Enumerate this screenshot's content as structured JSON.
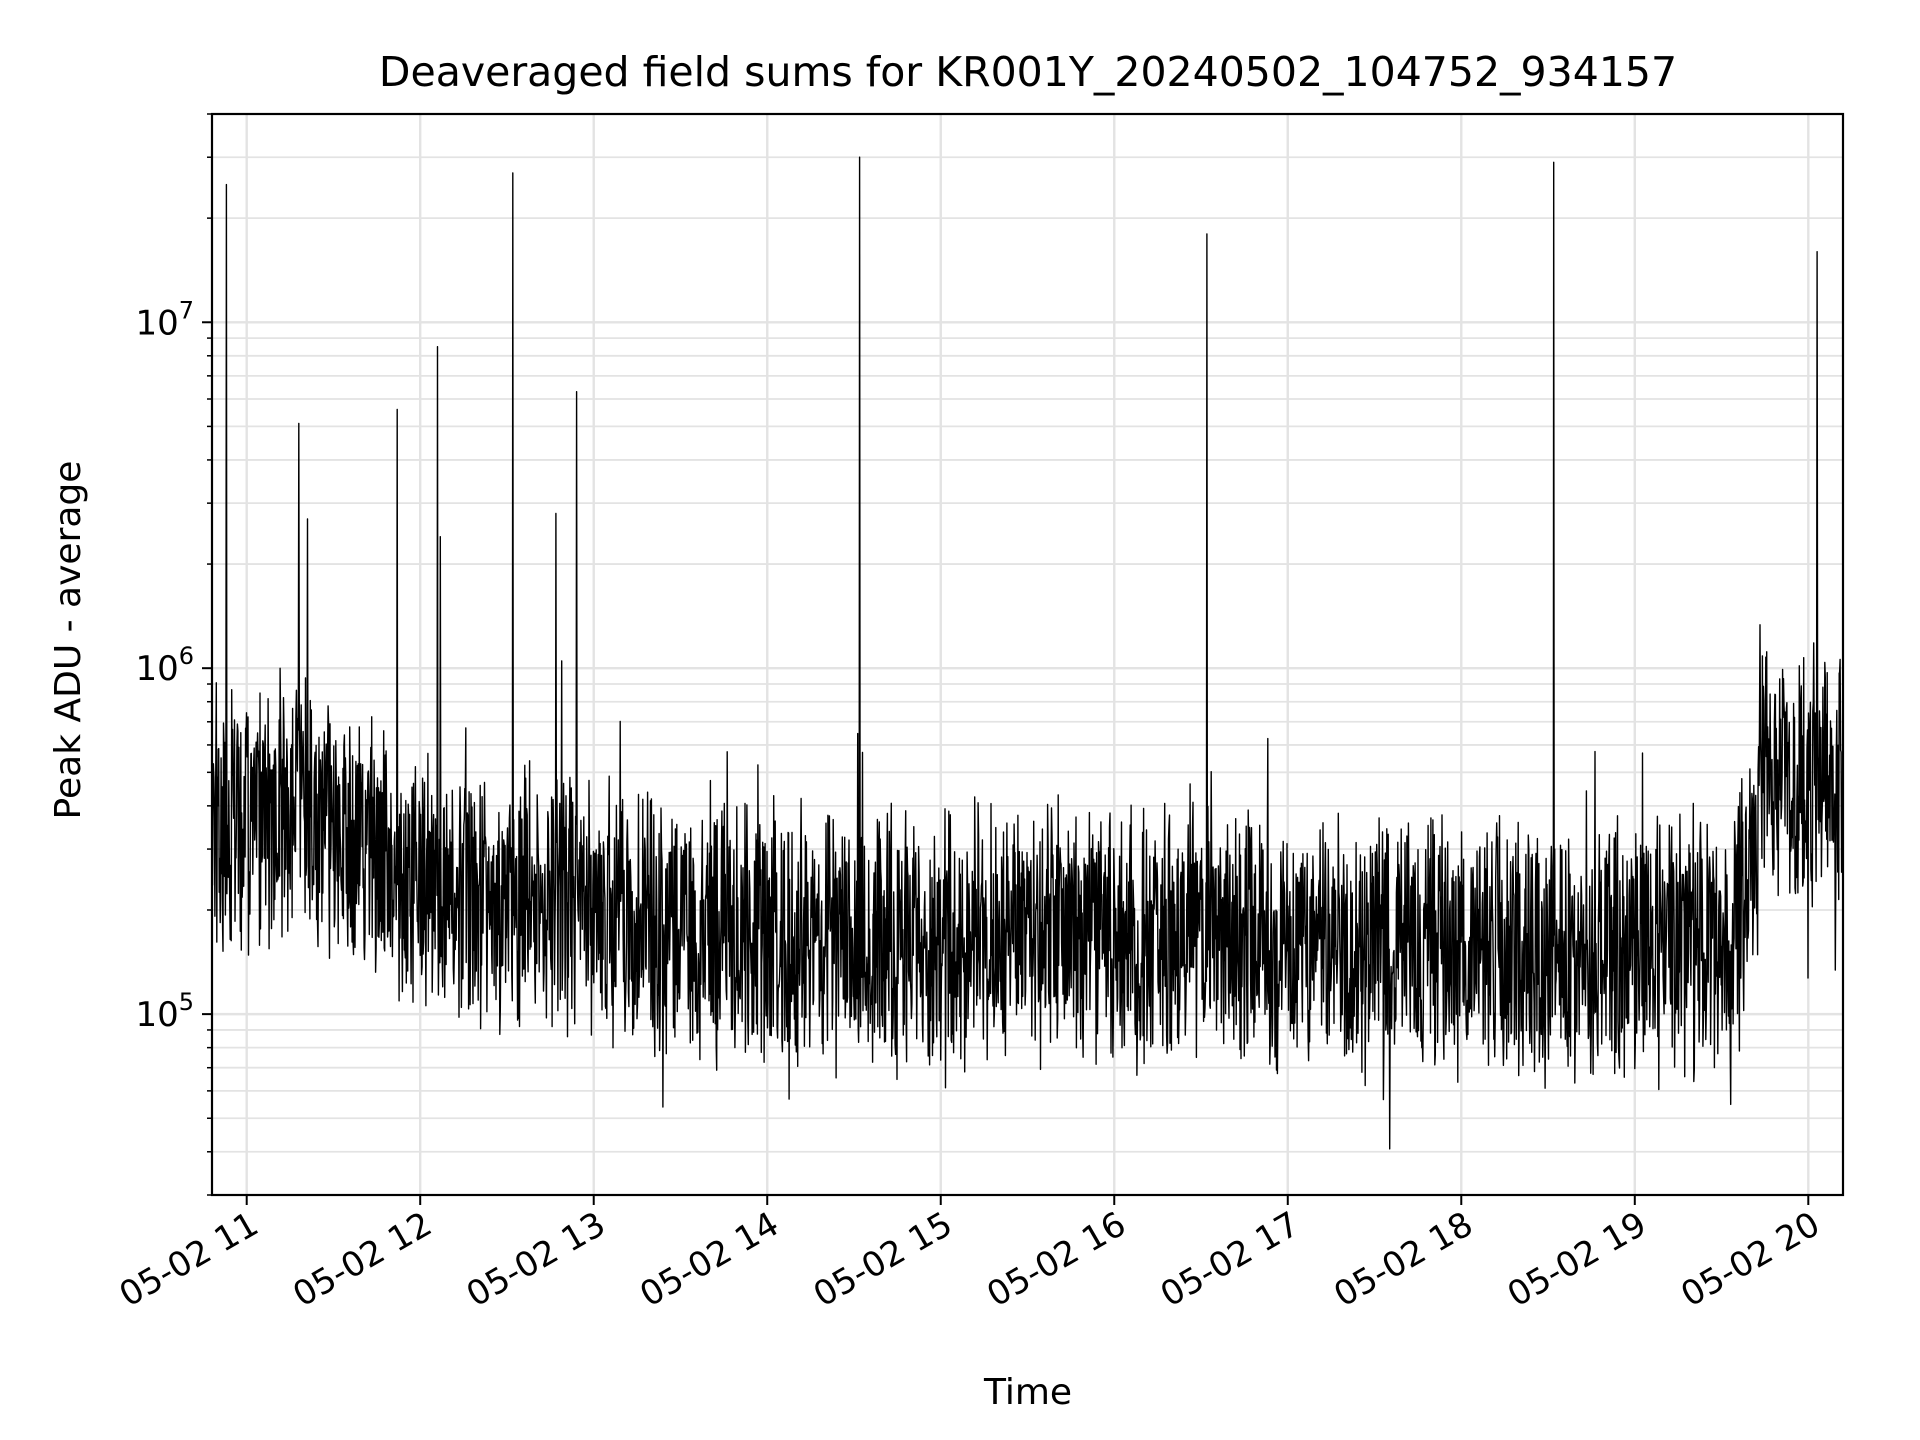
{
  "chart_data": {
    "type": "line",
    "title": "Deaveraged field sums for KR001Y_20240502_104752_934157",
    "xlabel": "Time",
    "ylabel": "Peak ADU - average",
    "yscale": "log",
    "grid": true,
    "line_color": "#000000",
    "xlim": [
      "05-02 10:48",
      "05-02 20:12"
    ],
    "ylim": [
      30000,
      40000000
    ],
    "x_ticks": [
      "05-02 11",
      "05-02 12",
      "05-02 13",
      "05-02 14",
      "05-02 15",
      "05-02 16",
      "05-02 17",
      "05-02 18",
      "05-02 19",
      "05-02 20"
    ],
    "y_ticks": [
      {
        "base": "10",
        "exp": "5",
        "value": 100000
      },
      {
        "base": "10",
        "exp": "6",
        "value": 1000000
      },
      {
        "base": "10",
        "exp": "7",
        "value": 10000000
      }
    ],
    "baseline": {
      "x": [
        "05-02 10:48",
        "05-02 11:18",
        "05-02 12:00",
        "05-02 13:00",
        "05-02 14:00",
        "05-02 15:00",
        "05-02 16:00",
        "05-02 17:00",
        "05-02 18:00",
        "05-02 19:00",
        "05-02 19:35",
        "05-02 19:45",
        "05-02 20:12"
      ],
      "y": [
        350000,
        400000,
        230000,
        200000,
        160000,
        170000,
        170000,
        160000,
        160000,
        150000,
        170000,
        480000,
        480000
      ]
    },
    "spikes": {
      "x": [
        "05-02 10:53",
        "05-02 11:18",
        "05-02 11:21",
        "05-02 11:52",
        "05-02 12:06",
        "05-02 12:07",
        "05-02 12:32",
        "05-02 12:47",
        "05-02 12:49",
        "05-02 12:54",
        "05-02 14:32",
        "05-02 16:32",
        "05-02 18:32",
        "05-02 20:03"
      ],
      "y": [
        25000000,
        5100000,
        2700000,
        5600000,
        8500000,
        2400000,
        27000000,
        2800000,
        1050000,
        6300000,
        30000000,
        18000000,
        29000000,
        16000000
      ]
    }
  }
}
